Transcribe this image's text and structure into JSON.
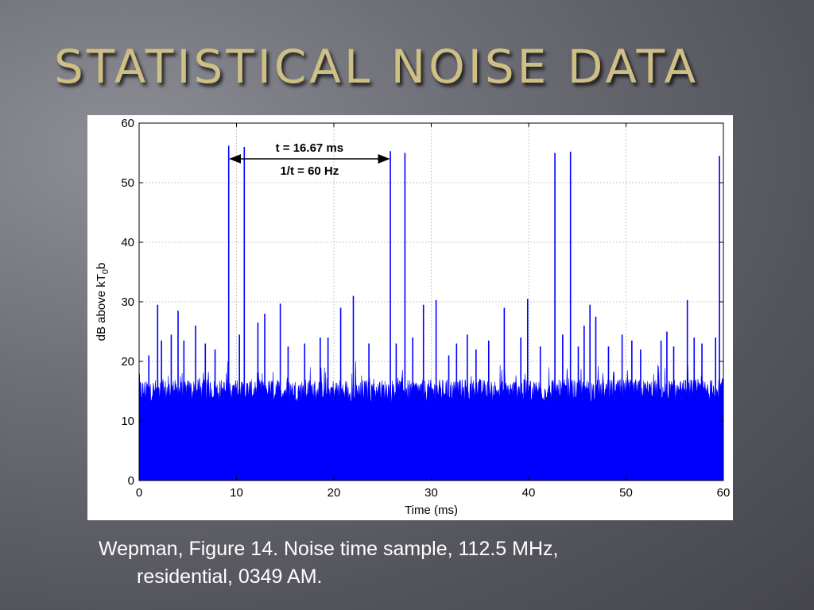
{
  "slide": {
    "title": "STATISTICAL NOISE DATA",
    "caption_line1": "Wepman, Figure 14.  Noise time sample, 112.5 MHz,",
    "caption_line2": "residential, 0349 AM."
  },
  "colors": {
    "title": "#cdbf85",
    "series": "#0000ff",
    "grid": "#c8c8c8"
  },
  "chart_data": {
    "type": "line",
    "title": "",
    "xlabel": "Time (ms)",
    "ylabel": "dB above kT_0b",
    "ylabel_main": "dB above kT",
    "ylabel_sub": "0",
    "ylabel_tail": "b",
    "xlim": [
      0,
      60
    ],
    "ylim": [
      0,
      60
    ],
    "xticks": [
      0,
      10,
      20,
      30,
      40,
      50,
      60
    ],
    "yticks": [
      0,
      10,
      20,
      30,
      40,
      50,
      60
    ],
    "grid": true,
    "noise_floor_db": [
      13,
      17
    ],
    "series": [
      {
        "values_description_peaks": true,
        "peaks": [
          {
            "x": 1.0,
            "y": 21
          },
          {
            "x": 1.9,
            "y": 29.5
          },
          {
            "x": 2.3,
            "y": 23.5
          },
          {
            "x": 3.3,
            "y": 24.5
          },
          {
            "x": 4.0,
            "y": 28.5
          },
          {
            "x": 4.6,
            "y": 23.5
          },
          {
            "x": 5.8,
            "y": 26.0
          },
          {
            "x": 6.8,
            "y": 23.0
          },
          {
            "x": 7.8,
            "y": 22.0
          },
          {
            "x": 9.2,
            "y": 56.2
          },
          {
            "x": 10.3,
            "y": 24.5
          },
          {
            "x": 10.8,
            "y": 56.0
          },
          {
            "x": 12.2,
            "y": 26.5
          },
          {
            "x": 12.9,
            "y": 28.0
          },
          {
            "x": 14.5,
            "y": 29.7
          },
          {
            "x": 15.3,
            "y": 22.5
          },
          {
            "x": 17.0,
            "y": 23.0
          },
          {
            "x": 18.6,
            "y": 24.0
          },
          {
            "x": 19.4,
            "y": 24.0
          },
          {
            "x": 20.7,
            "y": 29.0
          },
          {
            "x": 22.0,
            "y": 31.0
          },
          {
            "x": 23.6,
            "y": 23.0
          },
          {
            "x": 25.8,
            "y": 55.3
          },
          {
            "x": 26.4,
            "y": 23.0
          },
          {
            "x": 27.3,
            "y": 55.0
          },
          {
            "x": 28.1,
            "y": 24.0
          },
          {
            "x": 29.2,
            "y": 29.5
          },
          {
            "x": 30.5,
            "y": 30.3
          },
          {
            "x": 31.8,
            "y": 21.0
          },
          {
            "x": 32.6,
            "y": 23.0
          },
          {
            "x": 33.7,
            "y": 24.5
          },
          {
            "x": 34.6,
            "y": 22.0
          },
          {
            "x": 35.9,
            "y": 23.5
          },
          {
            "x": 37.5,
            "y": 29.0
          },
          {
            "x": 39.2,
            "y": 24.0
          },
          {
            "x": 39.9,
            "y": 30.5
          },
          {
            "x": 41.2,
            "y": 22.5
          },
          {
            "x": 42.7,
            "y": 55.0
          },
          {
            "x": 43.5,
            "y": 24.5
          },
          {
            "x": 44.3,
            "y": 55.2
          },
          {
            "x": 45.1,
            "y": 22.5
          },
          {
            "x": 45.7,
            "y": 26.0
          },
          {
            "x": 46.3,
            "y": 29.5
          },
          {
            "x": 46.9,
            "y": 27.5
          },
          {
            "x": 48.2,
            "y": 22.5
          },
          {
            "x": 49.6,
            "y": 24.5
          },
          {
            "x": 50.6,
            "y": 23.5
          },
          {
            "x": 51.5,
            "y": 22.0
          },
          {
            "x": 53.6,
            "y": 23.5
          },
          {
            "x": 54.2,
            "y": 25.0
          },
          {
            "x": 54.9,
            "y": 22.5
          },
          {
            "x": 56.3,
            "y": 30.3
          },
          {
            "x": 57.0,
            "y": 24.0
          },
          {
            "x": 57.8,
            "y": 23.0
          },
          {
            "x": 59.6,
            "y": 54.5
          },
          {
            "x": 59.2,
            "y": 24.0
          }
        ]
      }
    ],
    "annotations": [
      {
        "text": "t = 16.67 ms",
        "arrow_from_x": 9.2,
        "arrow_to_x": 25.8,
        "arrow_y": 54.0
      },
      {
        "text": "1/t = 60 Hz"
      }
    ]
  }
}
